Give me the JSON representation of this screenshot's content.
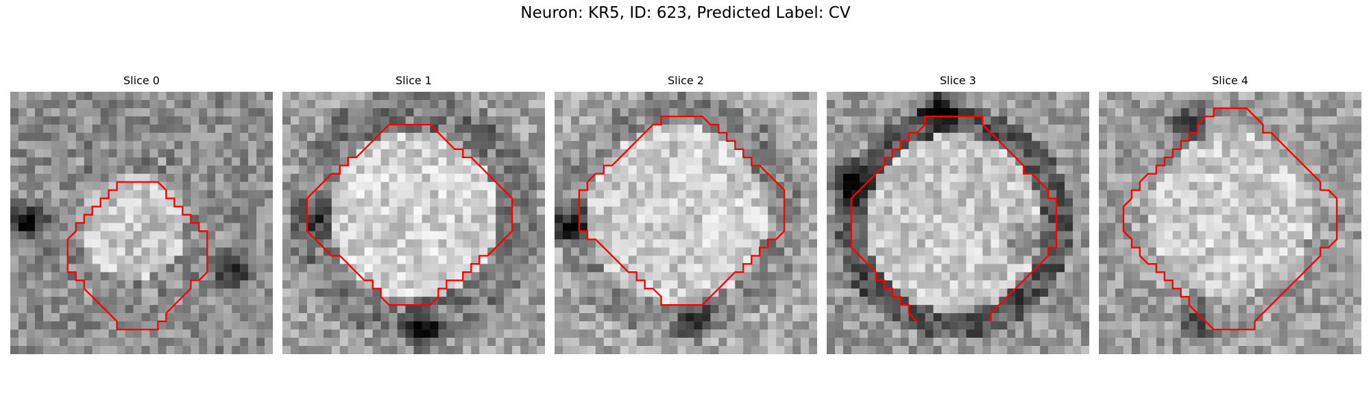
{
  "figure": {
    "title": "Neuron: KR5, ID: 623, Predicted Label: CV",
    "contour_color": "#ff0000",
    "colormap": "grayscale"
  },
  "panels": [
    {
      "title": "Slice 0"
    },
    {
      "title": "Slice 1"
    },
    {
      "title": "Slice 2"
    },
    {
      "title": "Slice 3"
    },
    {
      "title": "Slice 4"
    }
  ]
}
